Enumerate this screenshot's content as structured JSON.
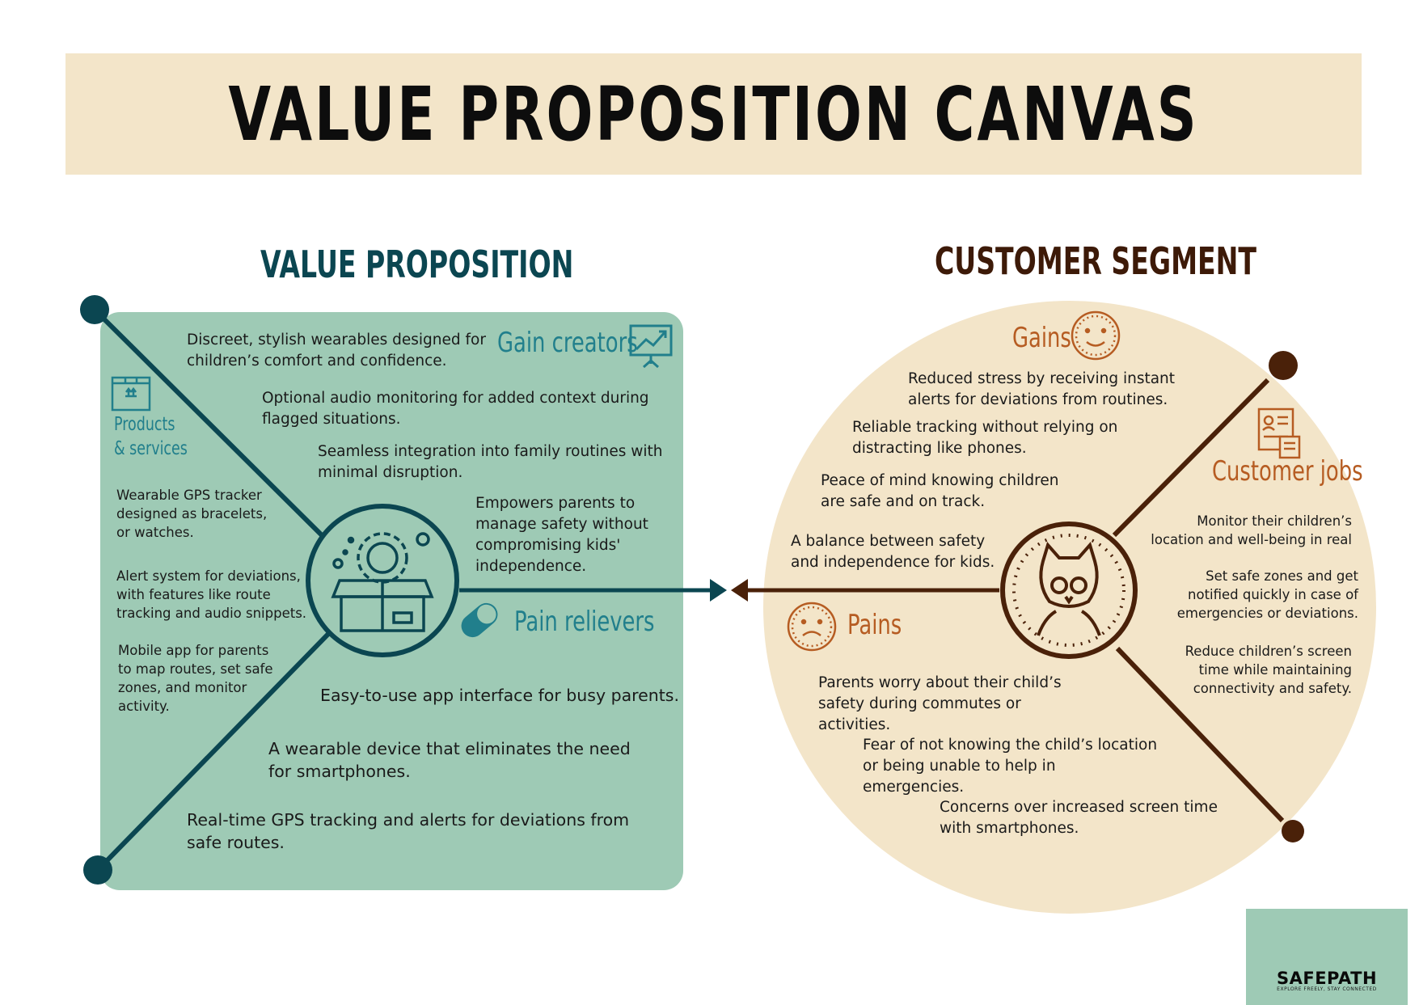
{
  "header": {
    "title": "VALUE PROPOSITION CANVAS"
  },
  "value_proposition": {
    "title": "VALUE PROPOSITION",
    "gain_creators": {
      "label": "Gain creators",
      "items": [
        "Discreet, stylish wearables designed for children’s comfort and confidence.",
        "Optional audio monitoring for added context during flagged situations.",
        "Seamless integration into family routines with minimal disruption.",
        "Empowers parents to manage safety without compromising kids' independence."
      ]
    },
    "products_services": {
      "label": "Products\n& services",
      "items": [
        "Wearable GPS tracker designed as bracelets, or watches.",
        "Alert system for deviations, with features like route tracking and audio snippets.",
        "Mobile app for parents to map routes, set safe zones, and monitor activity."
      ]
    },
    "pain_relievers": {
      "label": "Pain relievers",
      "items": [
        "Easy-to-use app interface for busy parents.",
        "A wearable device that eliminates the need for smartphones.",
        "Real-time GPS tracking and alerts for deviations from safe routes."
      ]
    }
  },
  "customer_segment": {
    "title": "CUSTOMER SEGMENT",
    "gains": {
      "label": "Gains",
      "items": [
        "Reduced stress by receiving instant alerts for deviations from routines.",
        "Reliable tracking without relying on distracting like phones.",
        "Peace of mind knowing children are safe and on track.",
        "A balance between safety and independence for kids."
      ]
    },
    "customer_jobs": {
      "label": "Customer jobs",
      "items": [
        "Monitor their children’s location and well-being in real",
        "Set safe zones and get notified quickly in case of emergencies or deviations.",
        "Reduce children’s screen time while maintaining connectivity and safety."
      ]
    },
    "pains": {
      "label": "Pains",
      "items": [
        "Parents worry about their child’s safety during commutes or activities.",
        "Fear of not knowing the child’s location or being unable to help in emergencies.",
        "Concerns over increased screen time with smartphones."
      ]
    }
  },
  "logo": {
    "name": "SAFEPATH",
    "tagline": "EXPLORE FREELY, STAY CONNECTED"
  },
  "icons": [
    "gift-box-gear-icon",
    "owl-badge-icon",
    "presentation-chart-icon",
    "package-box-icon",
    "pill-icon",
    "smiley-face-icon",
    "sad-face-icon",
    "resume-document-icon",
    "family-silhouette-icon"
  ],
  "colors": {
    "teal_dark": "#0b4651",
    "teal_label": "#217f8c",
    "teal_box": "#9ecab5",
    "beige": "#f3e5c9",
    "brown_dark": "#3d1a08",
    "brown_label": "#b65c22"
  }
}
